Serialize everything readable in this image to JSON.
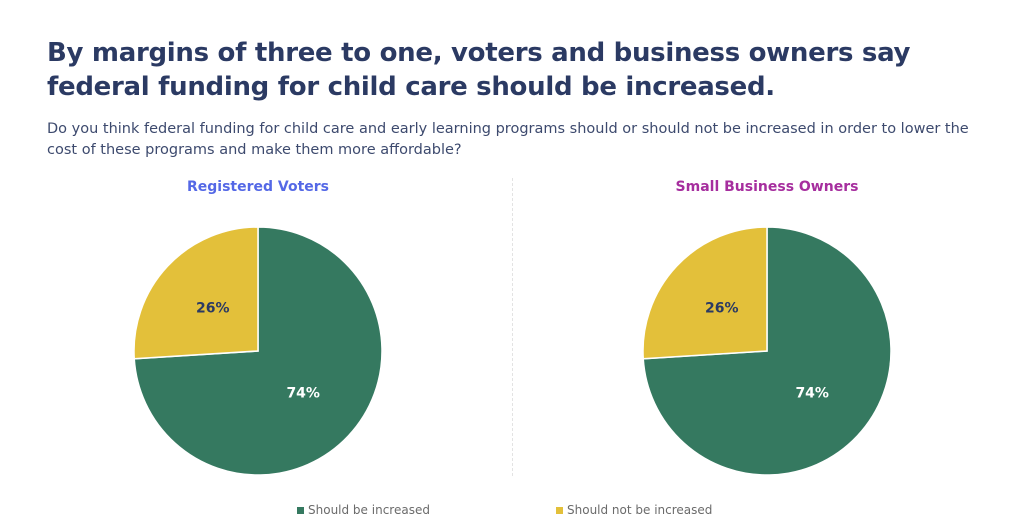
{
  "headline": "By margins of three to one, voters and business owners say federal funding for child care should be increased.",
  "question": "Do you think federal funding for child care and early learning programs should or should not be increased in order to lower the cost of these programs and make them more affordable?",
  "colors": {
    "increased": "#357960",
    "not_increased": "#e3c03a",
    "title_voters": "#5468e6",
    "title_business": "#a62e9e",
    "label_on_green": "#ffffff",
    "label_on_yellow": "#2b3a63"
  },
  "legend": [
    {
      "label": "Should be increased",
      "color": "#357960"
    },
    {
      "label": "Should not be increased",
      "color": "#e3c03a"
    }
  ],
  "chart_data": [
    {
      "type": "pie",
      "title": "Registered Voters",
      "categories": [
        "Should be increased",
        "Should not be increased"
      ],
      "values": [
        74,
        26
      ],
      "labels": [
        "74%",
        "26%"
      ]
    },
    {
      "type": "pie",
      "title": "Small Business Owners",
      "categories": [
        "Should be increased",
        "Should not be increased"
      ],
      "values": [
        74,
        26
      ],
      "labels": [
        "74%",
        "26%"
      ]
    }
  ]
}
